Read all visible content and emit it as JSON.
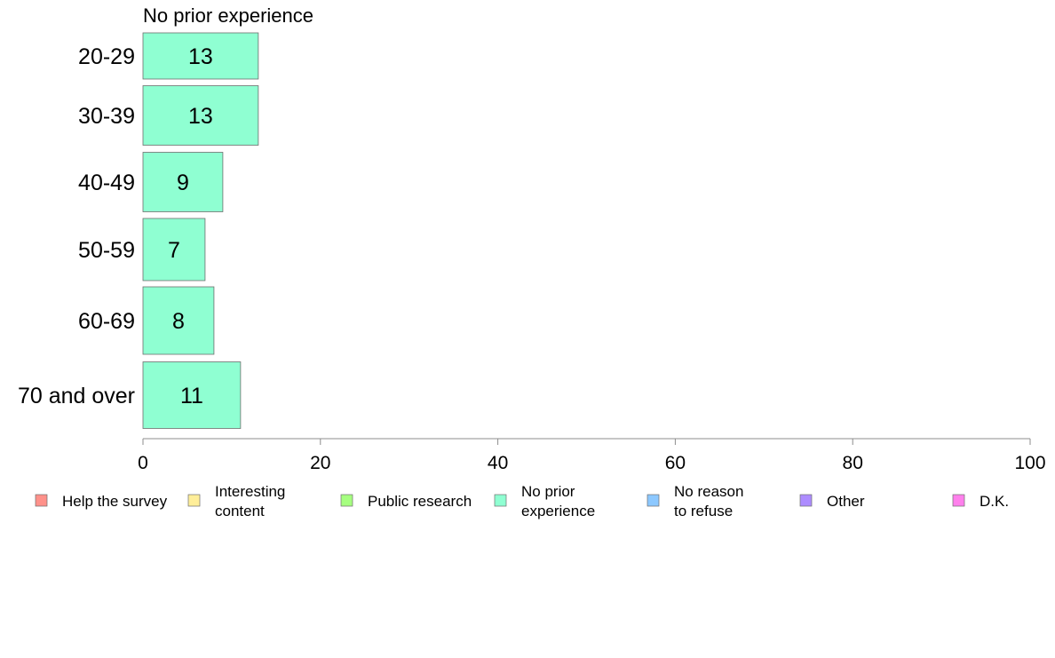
{
  "chart_data": {
    "type": "bar",
    "orientation": "horizontal",
    "title": "No prior experience",
    "categories": [
      "20-29",
      "30-39",
      "40-49",
      "50-59",
      "60-69",
      "70 and over"
    ],
    "series": [
      {
        "name": "No prior experience",
        "values": [
          13,
          13,
          9,
          7,
          8,
          11
        ],
        "labels": [
          "13",
          "13",
          "9",
          "7",
          "8",
          "11"
        ],
        "color": "#8fffd2"
      }
    ],
    "xlim": [
      0,
      100
    ],
    "x_ticks": [
      0,
      20,
      40,
      60,
      80,
      100
    ],
    "grid": false,
    "legend_position": "bottom",
    "legend": [
      {
        "lines": [
          "Help the survey"
        ],
        "color": "#ff918a"
      },
      {
        "lines": [
          "Interesting",
          "content"
        ],
        "color": "#ffee99"
      },
      {
        "lines": [
          "Public research"
        ],
        "color": "#a6ff80"
      },
      {
        "lines": [
          "No prior",
          "experience"
        ],
        "color": "#8fffd2"
      },
      {
        "lines": [
          "No reason",
          "to refuse"
        ],
        "color": "#8cc8ff"
      },
      {
        "lines": [
          "Other"
        ],
        "color": "#ad8cff"
      },
      {
        "lines": [
          "D.K."
        ],
        "color": "#ff80ec"
      }
    ]
  }
}
